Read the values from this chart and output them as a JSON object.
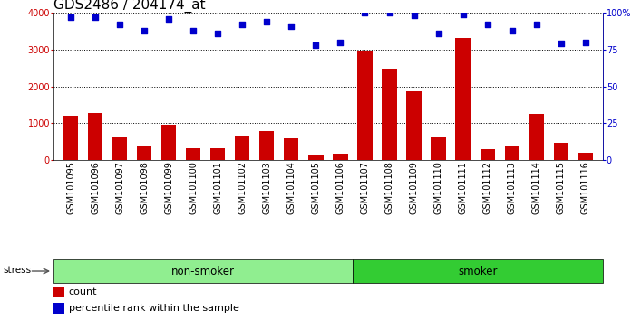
{
  "title": "GDS2486 / 204174_at",
  "samples": [
    "GSM101095",
    "GSM101096",
    "GSM101097",
    "GSM101098",
    "GSM101099",
    "GSM101100",
    "GSM101101",
    "GSM101102",
    "GSM101103",
    "GSM101104",
    "GSM101105",
    "GSM101106",
    "GSM101107",
    "GSM101108",
    "GSM101109",
    "GSM101110",
    "GSM101111",
    "GSM101112",
    "GSM101113",
    "GSM101114",
    "GSM101115",
    "GSM101116"
  ],
  "counts": [
    1200,
    1280,
    620,
    380,
    950,
    310,
    310,
    660,
    780,
    600,
    120,
    170,
    2970,
    2480,
    1860,
    620,
    3320,
    300,
    370,
    1260,
    470,
    200
  ],
  "percentile_ranks": [
    97,
    97,
    92,
    88,
    96,
    88,
    86,
    92,
    94,
    91,
    78,
    80,
    100,
    100,
    98,
    86,
    99,
    92,
    88,
    92,
    79,
    80
  ],
  "groups": [
    "non-smoker",
    "non-smoker",
    "non-smoker",
    "non-smoker",
    "non-smoker",
    "non-smoker",
    "non-smoker",
    "non-smoker",
    "non-smoker",
    "non-smoker",
    "non-smoker",
    "non-smoker",
    "smoker",
    "smoker",
    "smoker",
    "smoker",
    "smoker",
    "smoker",
    "smoker",
    "smoker",
    "smoker",
    "smoker"
  ],
  "bar_color": "#cc0000",
  "dot_color": "#0000cc",
  "nonsmoker_color": "#90ee90",
  "smoker_color": "#33cc33",
  "ylim_left": [
    0,
    4000
  ],
  "ylim_right": [
    0,
    100
  ],
  "yticks_left": [
    0,
    1000,
    2000,
    3000,
    4000
  ],
  "ytick_labels_left": [
    "0",
    "1000",
    "2000",
    "3000",
    "4000"
  ],
  "yticks_right": [
    0,
    25,
    50,
    75,
    100
  ],
  "ytick_labels_right": [
    "0",
    "25",
    "50",
    "75",
    "100%"
  ],
  "stress_label": "stress",
  "nonsmoker_label": "non-smoker",
  "smoker_label": "smoker",
  "legend_count_label": "count",
  "legend_pct_label": "percentile rank within the sample",
  "title_fontsize": 11,
  "tick_fontsize": 7,
  "group_label_fontsize": 8.5,
  "legend_fontsize": 8
}
